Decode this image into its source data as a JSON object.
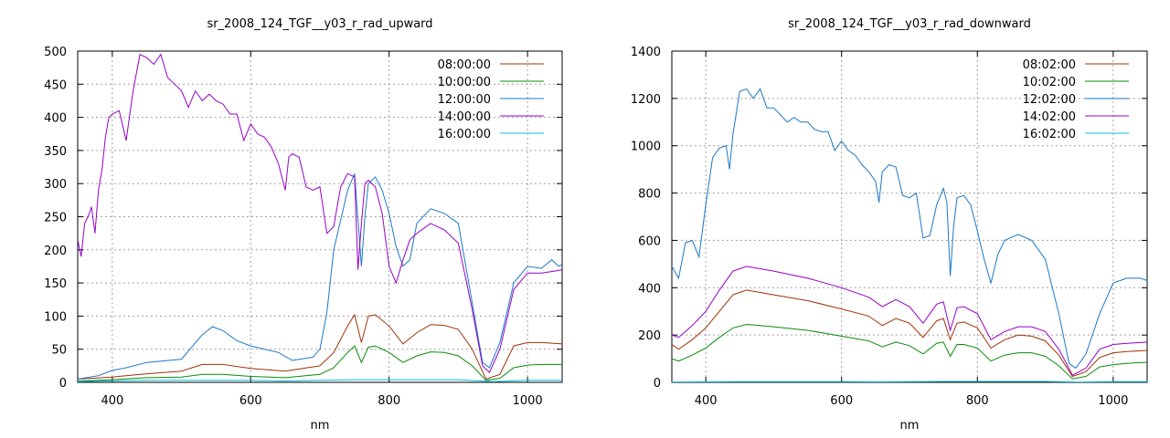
{
  "chart_data": [
    {
      "type": "line",
      "title": "sr_2008_124_TGF__y03_r_rad_upward",
      "xlabel": "nm",
      "ylabel": "",
      "xlim": [
        350,
        1050
      ],
      "ylim": [
        0,
        500
      ],
      "x_ticks": [
        400,
        600,
        800,
        1000
      ],
      "y_ticks": [
        0,
        50,
        100,
        150,
        200,
        250,
        300,
        350,
        400,
        450,
        500
      ],
      "grid": true,
      "legend_position": "top-right",
      "series": [
        {
          "name": "08:00:00",
          "color": "#a0320a",
          "x": [
            350,
            400,
            450,
            500,
            530,
            560,
            600,
            650,
            700,
            720,
            740,
            750,
            760,
            770,
            780,
            800,
            820,
            840,
            860,
            880,
            900,
            920,
            940,
            960,
            980,
            1000,
            1020,
            1050
          ],
          "y": [
            5,
            8,
            13,
            17,
            27,
            27,
            21,
            17,
            25,
            45,
            85,
            102,
            60,
            100,
            102,
            85,
            58,
            75,
            87,
            86,
            80,
            50,
            5,
            12,
            55,
            60,
            60,
            58
          ]
        },
        {
          "name": "10:00:00",
          "color": "#0a8c0a",
          "x": [
            350,
            400,
            450,
            500,
            530,
            560,
            600,
            650,
            700,
            720,
            740,
            750,
            760,
            770,
            780,
            800,
            820,
            840,
            860,
            880,
            900,
            920,
            940,
            960,
            980,
            1000,
            1020,
            1050
          ],
          "y": [
            2,
            4,
            7,
            8,
            12,
            12,
            9,
            7,
            12,
            22,
            45,
            55,
            30,
            53,
            55,
            45,
            30,
            40,
            46,
            45,
            40,
            25,
            3,
            6,
            22,
            26,
            27,
            27
          ]
        },
        {
          "name": "12:00:00",
          "color": "#1a78c8",
          "x": [
            350,
            380,
            400,
            420,
            450,
            500,
            530,
            545,
            560,
            580,
            600,
            640,
            660,
            690,
            700,
            710,
            720,
            740,
            750,
            760,
            765,
            770,
            780,
            790,
            800,
            810,
            820,
            830,
            840,
            860,
            880,
            900,
            920,
            935,
            945,
            960,
            980,
            1000,
            1020,
            1035,
            1045,
            1050
          ],
          "y": [
            5,
            10,
            18,
            22,
            30,
            35,
            72,
            84,
            78,
            63,
            55,
            45,
            33,
            38,
            50,
            105,
            200,
            290,
            315,
            175,
            250,
            300,
            310,
            290,
            255,
            205,
            175,
            185,
            240,
            262,
            255,
            240,
            120,
            30,
            22,
            60,
            150,
            175,
            172,
            185,
            175,
            178
          ]
        },
        {
          "name": "14:00:00",
          "color": "#9600c8",
          "x": [
            350,
            355,
            360,
            365,
            370,
            375,
            380,
            385,
            390,
            395,
            400,
            410,
            420,
            430,
            440,
            450,
            460,
            470,
            480,
            490,
            500,
            510,
            520,
            530,
            540,
            550,
            560,
            570,
            580,
            590,
            600,
            610,
            620,
            630,
            640,
            650,
            655,
            660,
            670,
            680,
            690,
            700,
            710,
            720,
            730,
            740,
            750,
            755,
            760,
            765,
            770,
            780,
            790,
            800,
            810,
            820,
            830,
            840,
            860,
            880,
            900,
            920,
            935,
            945,
            960,
            980,
            1000,
            1020,
            1040,
            1050
          ],
          "y": [
            215,
            190,
            240,
            250,
            265,
            225,
            290,
            320,
            370,
            400,
            405,
            410,
            365,
            440,
            495,
            490,
            480,
            495,
            460,
            450,
            440,
            415,
            440,
            425,
            435,
            425,
            420,
            405,
            405,
            365,
            390,
            375,
            370,
            355,
            330,
            290,
            340,
            345,
            340,
            295,
            290,
            295,
            225,
            235,
            295,
            315,
            310,
            170,
            240,
            300,
            305,
            295,
            255,
            175,
            150,
            185,
            215,
            225,
            240,
            230,
            210,
            110,
            25,
            15,
            50,
            140,
            165,
            165,
            168,
            170
          ]
        },
        {
          "name": "16:00:00",
          "color": "#00c0e0",
          "x": [
            350,
            400,
            450,
            500,
            550,
            600,
            650,
            700,
            750,
            800,
            850,
            900,
            950,
            1000,
            1050
          ],
          "y": [
            1,
            2,
            3,
            3,
            3,
            3,
            2,
            3,
            4,
            4,
            4,
            4,
            1,
            3,
            3
          ]
        }
      ]
    },
    {
      "type": "line",
      "title": "sr_2008_124_TGF__y03_r_rad_downward",
      "xlabel": "nm",
      "ylabel": "",
      "xlim": [
        350,
        1050
      ],
      "ylim": [
        0,
        1400
      ],
      "x_ticks": [
        400,
        600,
        800,
        1000
      ],
      "y_ticks": [
        0,
        200,
        400,
        600,
        800,
        1000,
        1200,
        1400
      ],
      "grid": true,
      "legend_position": "top-right",
      "series": [
        {
          "name": "08:02:00",
          "color": "#a0320a",
          "x": [
            350,
            360,
            380,
            400,
            420,
            440,
            460,
            480,
            500,
            550,
            600,
            640,
            660,
            680,
            700,
            720,
            740,
            750,
            760,
            770,
            780,
            800,
            820,
            840,
            860,
            880,
            900,
            920,
            940,
            960,
            980,
            1000,
            1020,
            1050
          ],
          "y": [
            160,
            140,
            180,
            230,
            300,
            370,
            390,
            380,
            370,
            345,
            310,
            280,
            240,
            270,
            250,
            190,
            260,
            270,
            180,
            250,
            255,
            230,
            145,
            180,
            200,
            195,
            175,
            115,
            25,
            45,
            105,
            125,
            130,
            135
          ]
        },
        {
          "name": "10:02:00",
          "color": "#0a8c0a",
          "x": [
            350,
            360,
            380,
            400,
            420,
            440,
            460,
            480,
            500,
            550,
            600,
            640,
            660,
            680,
            700,
            720,
            740,
            750,
            760,
            770,
            780,
            800,
            820,
            840,
            860,
            880,
            900,
            920,
            940,
            960,
            980,
            1000,
            1020,
            1050
          ],
          "y": [
            100,
            90,
            115,
            145,
            190,
            230,
            245,
            240,
            235,
            220,
            195,
            175,
            150,
            170,
            155,
            120,
            165,
            170,
            110,
            160,
            160,
            145,
            90,
            115,
            125,
            125,
            110,
            70,
            15,
            25,
            65,
            75,
            80,
            85
          ]
        },
        {
          "name": "12:02:00",
          "color": "#1a78c8",
          "x": [
            350,
            360,
            370,
            380,
            390,
            400,
            405,
            410,
            420,
            430,
            435,
            440,
            450,
            460,
            470,
            480,
            490,
            500,
            510,
            520,
            530,
            540,
            550,
            560,
            570,
            580,
            590,
            600,
            610,
            620,
            630,
            640,
            650,
            655,
            660,
            670,
            680,
            690,
            700,
            710,
            720,
            730,
            740,
            750,
            755,
            760,
            765,
            770,
            780,
            790,
            800,
            810,
            820,
            830,
            840,
            860,
            880,
            900,
            920,
            935,
            945,
            960,
            980,
            1000,
            1020,
            1040,
            1050
          ],
          "y": [
            490,
            440,
            590,
            600,
            530,
            750,
            850,
            950,
            990,
            1000,
            900,
            1050,
            1230,
            1240,
            1200,
            1240,
            1160,
            1160,
            1130,
            1100,
            1120,
            1100,
            1100,
            1070,
            1060,
            1060,
            980,
            1020,
            980,
            960,
            920,
            890,
            850,
            760,
            890,
            920,
            910,
            790,
            780,
            800,
            610,
            620,
            750,
            820,
            760,
            450,
            660,
            780,
            790,
            750,
            640,
            520,
            420,
            540,
            600,
            625,
            600,
            520,
            290,
            80,
            60,
            120,
            290,
            420,
            440,
            440,
            430
          ]
        },
        {
          "name": "14:02:00",
          "color": "#9600c8",
          "x": [
            350,
            360,
            380,
            400,
            420,
            440,
            460,
            480,
            500,
            550,
            600,
            640,
            660,
            680,
            700,
            720,
            740,
            750,
            760,
            770,
            780,
            800,
            820,
            840,
            860,
            880,
            900,
            920,
            940,
            960,
            980,
            1000,
            1020,
            1050
          ],
          "y": [
            200,
            190,
            240,
            300,
            390,
            470,
            490,
            480,
            470,
            440,
            400,
            360,
            320,
            350,
            320,
            250,
            330,
            340,
            220,
            315,
            320,
            290,
            180,
            215,
            235,
            235,
            215,
            140,
            30,
            60,
            140,
            160,
            165,
            170
          ]
        },
        {
          "name": "16:02:00",
          "color": "#00c0e0",
          "x": [
            350,
            400,
            450,
            500,
            550,
            600,
            650,
            700,
            750,
            800,
            850,
            900,
            950,
            1000,
            1050
          ],
          "y": [
            1,
            2,
            3,
            3,
            3,
            3,
            2,
            3,
            4,
            4,
            4,
            4,
            1,
            3,
            3
          ]
        }
      ]
    }
  ]
}
